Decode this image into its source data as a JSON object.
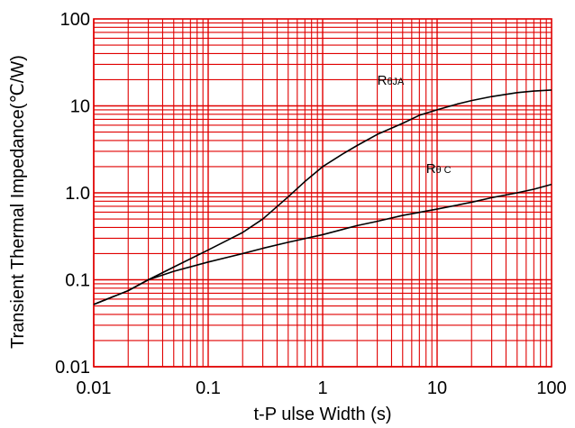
{
  "chart_data": {
    "type": "line",
    "xlabel": "t-P ulse Width (s)",
    "ylabel": "Transient Thermal Impedance(℃/W)",
    "xscale": "log",
    "yscale": "log",
    "xlim": [
      0.01,
      100
    ],
    "ylim": [
      0.01,
      100
    ],
    "grid": true,
    "grid_color": "#e00000",
    "line_color": "#000000",
    "x_ticks": [
      {
        "value": 0.01,
        "label": "0.01"
      },
      {
        "value": 0.1,
        "label": "0.1"
      },
      {
        "value": 1,
        "label": "1"
      },
      {
        "value": 10,
        "label": "10"
      },
      {
        "value": 100,
        "label": "100"
      }
    ],
    "y_ticks": [
      {
        "value": 0.01,
        "label": "0.01"
      },
      {
        "value": 0.1,
        "label": "0.1"
      },
      {
        "value": 1,
        "label": "1.0"
      },
      {
        "value": 10,
        "label": "10"
      },
      {
        "value": 100,
        "label": "100"
      }
    ],
    "series": [
      {
        "name": "RθJA",
        "label_sub": "θJA",
        "label_at": [
          3.0,
          17.5
        ],
        "points": [
          [
            0.01,
            0.052
          ],
          [
            0.02,
            0.075
          ],
          [
            0.03,
            0.1
          ],
          [
            0.05,
            0.14
          ],
          [
            0.1,
            0.22
          ],
          [
            0.2,
            0.35
          ],
          [
            0.3,
            0.5
          ],
          [
            0.5,
            0.9
          ],
          [
            0.7,
            1.35
          ],
          [
            1,
            2.0
          ],
          [
            1.5,
            2.8
          ],
          [
            2,
            3.5
          ],
          [
            3,
            4.7
          ],
          [
            5,
            6.3
          ],
          [
            7,
            7.8
          ],
          [
            10,
            9.0
          ],
          [
            15,
            10.5
          ],
          [
            20,
            11.5
          ],
          [
            30,
            12.8
          ],
          [
            50,
            14.2
          ],
          [
            70,
            14.8
          ],
          [
            100,
            15.2
          ]
        ]
      },
      {
        "name": "RθJC",
        "label_sub": "θ",
        "label_sub2": "C",
        "label_at": [
          8.0,
          1.7
        ],
        "points": [
          [
            0.01,
            0.052
          ],
          [
            0.02,
            0.075
          ],
          [
            0.03,
            0.1
          ],
          [
            0.05,
            0.125
          ],
          [
            0.1,
            0.16
          ],
          [
            0.2,
            0.2
          ],
          [
            0.3,
            0.23
          ],
          [
            0.5,
            0.27
          ],
          [
            1,
            0.33
          ],
          [
            2,
            0.42
          ],
          [
            3,
            0.47
          ],
          [
            5,
            0.55
          ],
          [
            10,
            0.65
          ],
          [
            20,
            0.78
          ],
          [
            30,
            0.88
          ],
          [
            50,
            1.0
          ],
          [
            70,
            1.1
          ],
          [
            100,
            1.25
          ]
        ]
      }
    ]
  }
}
